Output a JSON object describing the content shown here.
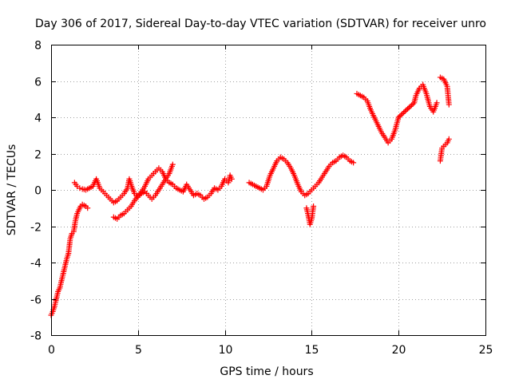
{
  "chart_data": {
    "type": "scatter",
    "title": "Day 306 of 2017, Sidereal Day-to-day VTEC variation (SDTVAR) for receiver unro",
    "xlabel": "GPS time / hours",
    "ylabel": "SDTVAR / TECUs",
    "xlim": [
      0,
      25
    ],
    "ylim": [
      -8,
      8
    ],
    "x_ticks": [
      0,
      5,
      10,
      15,
      20,
      25
    ],
    "y_ticks": [
      -8,
      -6,
      -4,
      -2,
      0,
      2,
      4,
      6,
      8
    ],
    "x_tick_labels": [
      "0",
      "5",
      "10",
      "15",
      "20",
      "25"
    ],
    "y_tick_labels": [
      "-8",
      "-6",
      "-4",
      "-2",
      "0",
      "2",
      "4",
      "6",
      "8"
    ],
    "grid": true,
    "marker": "+",
    "color": "#ff0000",
    "series": [
      {
        "name": "SDTVAR",
        "x": [
          0.0,
          0.1,
          0.2,
          0.3,
          0.4,
          0.5,
          0.6,
          0.7,
          0.8,
          0.9,
          1.0,
          1.1,
          1.2,
          1.3,
          1.4,
          1.5,
          1.6,
          1.7,
          1.8,
          1.9,
          2.0,
          2.1,
          1.35,
          1.5,
          1.65,
          1.8,
          2.0,
          2.4,
          2.6,
          2.8,
          3.0,
          3.2,
          3.4,
          3.6,
          3.8,
          4.0,
          4.2,
          4.4,
          4.5,
          4.6,
          4.8,
          5.0,
          5.2,
          5.4,
          5.6,
          5.8,
          6.0,
          6.2,
          6.4,
          6.6,
          6.8,
          7.0,
          7.2,
          7.4,
          7.6,
          7.8,
          8.0,
          8.2,
          8.4,
          8.6,
          8.8,
          9.0,
          9.2,
          9.4,
          9.6,
          9.8,
          10.0,
          10.1,
          10.2,
          10.3,
          10.4,
          3.6,
          3.8,
          4.0,
          4.2,
          4.4,
          4.6,
          4.8,
          5.0,
          5.2,
          5.4,
          5.6,
          5.8,
          6.0,
          6.2,
          6.4,
          6.6,
          6.8,
          7.0,
          11.4,
          11.6,
          11.8,
          12.0,
          12.2,
          12.4,
          12.6,
          12.8,
          13.0,
          13.2,
          13.4,
          13.6,
          13.8,
          14.0,
          14.2,
          14.4,
          14.6,
          14.8,
          15.0,
          15.2,
          15.4,
          15.6,
          15.8,
          16.0,
          16.2,
          16.4,
          16.6,
          16.8,
          17.0,
          17.2,
          17.4,
          14.7,
          14.8,
          14.9,
          15.0,
          15.1,
          17.6,
          17.8,
          18.0,
          18.2,
          18.4,
          18.6,
          18.8,
          19.0,
          19.2,
          19.4,
          19.6,
          19.8,
          20.0,
          20.9,
          21.0,
          21.2,
          21.4,
          21.6,
          21.8,
          22.0,
          22.2,
          22.4,
          22.6,
          22.8,
          22.9,
          22.4,
          22.5,
          22.6,
          22.8,
          22.9
        ],
        "y": [
          -6.9,
          -6.7,
          -6.4,
          -6.0,
          -5.6,
          -5.4,
          -5.0,
          -4.6,
          -4.2,
          -3.8,
          -3.5,
          -2.7,
          -2.4,
          -2.3,
          -1.7,
          -1.3,
          -1.1,
          -0.9,
          -0.8,
          -0.85,
          -0.9,
          -1.0,
          0.4,
          0.2,
          0.1,
          0.05,
          0.0,
          0.2,
          0.6,
          0.1,
          -0.1,
          -0.3,
          -0.5,
          -0.7,
          -0.6,
          -0.4,
          -0.2,
          0.1,
          0.6,
          0.3,
          -0.2,
          -0.4,
          -0.1,
          0.2,
          0.6,
          0.8,
          1.0,
          1.2,
          1.0,
          0.6,
          0.4,
          0.3,
          0.1,
          0.0,
          -0.1,
          0.3,
          0.0,
          -0.3,
          -0.2,
          -0.3,
          -0.5,
          -0.4,
          -0.2,
          0.1,
          0.0,
          0.2,
          0.6,
          0.5,
          0.4,
          0.8,
          0.6,
          -1.5,
          -1.6,
          -1.4,
          -1.3,
          -1.1,
          -0.9,
          -0.6,
          -0.3,
          -0.2,
          -0.1,
          -0.3,
          -0.5,
          -0.3,
          0.0,
          0.3,
          0.6,
          0.9,
          1.4,
          0.4,
          0.3,
          0.2,
          0.1,
          0.0,
          0.2,
          0.8,
          1.2,
          1.6,
          1.8,
          1.7,
          1.5,
          1.2,
          0.8,
          0.3,
          -0.1,
          -0.3,
          -0.2,
          0.0,
          0.2,
          0.4,
          0.7,
          1.0,
          1.3,
          1.5,
          1.6,
          1.8,
          1.9,
          1.8,
          1.6,
          1.5,
          -1.0,
          -1.4,
          -1.9,
          -1.6,
          -0.9,
          5.3,
          5.2,
          5.1,
          4.9,
          4.4,
          4.0,
          3.6,
          3.2,
          2.9,
          2.6,
          2.8,
          3.3,
          4.0,
          4.8,
          5.2,
          5.6,
          5.8,
          5.3,
          4.6,
          4.3,
          4.8,
          6.2,
          6.1,
          5.7,
          4.7,
          1.6,
          2.3,
          2.4,
          2.6,
          2.8
        ]
      }
    ]
  }
}
